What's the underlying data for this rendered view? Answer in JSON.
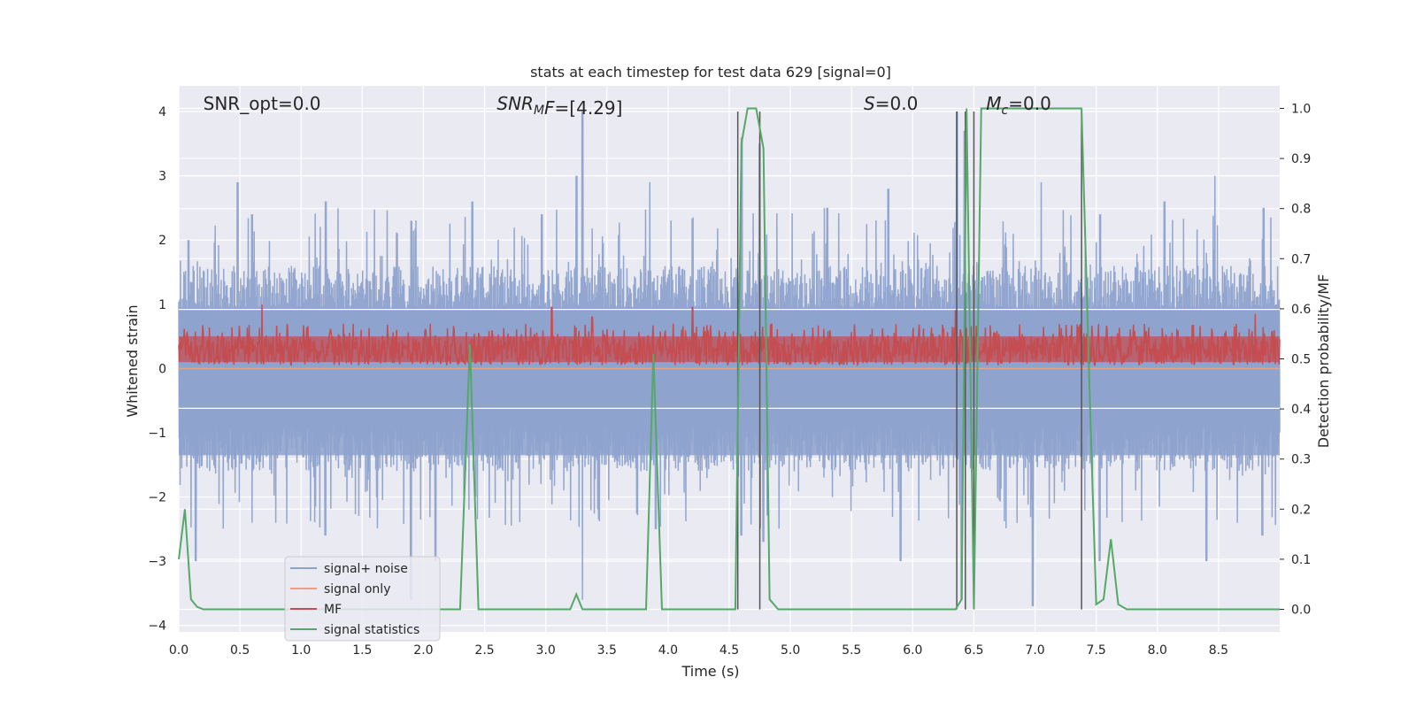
{
  "chart_data": {
    "type": "line",
    "title": "stats at each timestep for test data 629 [signal=0]",
    "xlabel": "Time (s)",
    "ylabel_left": "Whitened strain",
    "ylabel_right": "Detection probability/MF",
    "xlim": [
      0.0,
      9.0
    ],
    "ylim_left": [
      -4.1,
      4.4
    ],
    "ylim_right": [
      -0.045,
      1.045
    ],
    "x_ticks": [
      "0.0",
      "0.5",
      "1.0",
      "1.5",
      "2.0",
      "2.5",
      "3.0",
      "3.5",
      "4.0",
      "4.5",
      "5.0",
      "5.5",
      "6.0",
      "6.5",
      "7.0",
      "7.5",
      "8.0",
      "8.5"
    ],
    "y_ticks_left": [
      "4",
      "3",
      "2",
      "1",
      "0",
      "−1",
      "−2",
      "−3",
      "−4"
    ],
    "y_ticks_right": [
      "1.0",
      "0.9",
      "0.8",
      "0.7",
      "0.6",
      "0.5",
      "0.4",
      "0.3",
      "0.2",
      "0.1",
      "0.0"
    ],
    "grid": true,
    "legend_position": "lower-left",
    "annotations": [
      {
        "text": "SNR_opt=0.0",
        "x": 0.2
      },
      {
        "text": "SNR",
        "sub": "M",
        "tail": "F=[4.29]",
        "x": 2.6
      },
      {
        "text": "S",
        "tail": "=0.0",
        "x": 5.6
      },
      {
        "text": "M",
        "sub": "c",
        "tail": "=0.0",
        "x": 6.6
      }
    ],
    "series": [
      {
        "name": "signal+ noise",
        "color": "#8da2cc",
        "amplitude_typical": 1.6,
        "peaks": [
          [
            0.08,
            2.0
          ],
          [
            0.48,
            2.9
          ],
          [
            0.6,
            2.4
          ],
          [
            1.2,
            2.6
          ],
          [
            1.9,
            2.3
          ],
          [
            2.4,
            2.6
          ],
          [
            2.97,
            2.4
          ],
          [
            3.3,
            4.0
          ],
          [
            3.25,
            3.0
          ],
          [
            3.85,
            2.9
          ],
          [
            4.6,
            3.6
          ],
          [
            4.75,
            3.5
          ],
          [
            5.3,
            2.5
          ],
          [
            5.8,
            2.8
          ],
          [
            6.36,
            4.0
          ],
          [
            6.42,
            3.7
          ],
          [
            7.05,
            2.9
          ],
          [
            7.53,
            2.4
          ],
          [
            8.06,
            2.6
          ],
          [
            8.47,
            3.0
          ],
          [
            8.87,
            2.5
          ]
        ],
        "troughs": [
          [
            0.14,
            -3.0
          ],
          [
            0.6,
            -2.4
          ],
          [
            1.2,
            -2.6
          ],
          [
            1.9,
            -3.6
          ],
          [
            2.1,
            -3.0
          ],
          [
            3.3,
            -3.6
          ],
          [
            3.9,
            -2.5
          ],
          [
            4.6,
            -2.6
          ],
          [
            4.78,
            -2.7
          ],
          [
            5.9,
            -3.0
          ],
          [
            6.4,
            -3.6
          ],
          [
            6.98,
            -3.7
          ],
          [
            7.53,
            -3.0
          ],
          [
            8.4,
            -3.0
          ],
          [
            8.86,
            -2.6
          ]
        ]
      },
      {
        "name": "signal only",
        "color": "#e9a183",
        "values_constant": 0.0
      },
      {
        "name": "MF",
        "color": "#c44e52",
        "baseline": 0.3,
        "typical_max": 0.7,
        "peaks": [
          [
            0.68,
            1.0
          ],
          [
            3.05,
            0.95
          ],
          [
            3.38,
            0.8
          ],
          [
            4.2,
            0.95
          ],
          [
            6.35,
            0.9
          ],
          [
            8.8,
            0.85
          ]
        ]
      },
      {
        "name": "signal statistics",
        "color": "#55a868",
        "x": [
          0.0,
          0.05,
          0.1,
          0.15,
          0.2,
          0.25,
          2.3,
          2.38,
          2.45,
          3.2,
          3.25,
          3.3,
          3.82,
          3.88,
          3.95,
          4.55,
          4.6,
          4.65,
          4.72,
          4.78,
          4.83,
          4.9,
          6.35,
          6.4,
          6.44,
          6.5,
          6.56,
          7.38,
          7.45,
          7.5,
          7.56,
          7.62,
          7.68,
          7.75,
          9.0
        ],
        "y": [
          0.1,
          0.2,
          0.02,
          0.005,
          0.0,
          0.0,
          0.0,
          0.53,
          0.0,
          0.0,
          0.03,
          0.0,
          0.0,
          0.51,
          0.0,
          0.0,
          0.93,
          1.0,
          1.0,
          0.92,
          0.02,
          0.0,
          0.0,
          0.02,
          1.0,
          0.0,
          1.0,
          1.0,
          0.4,
          0.01,
          0.02,
          0.14,
          0.01,
          0.0,
          0.0
        ]
      }
    ],
    "vertical_lines": [
      4.57,
      4.75,
      6.36,
      6.43,
      6.5,
      7.38
    ],
    "vertical_line_range_left": [
      -3.75,
      4.0
    ]
  }
}
